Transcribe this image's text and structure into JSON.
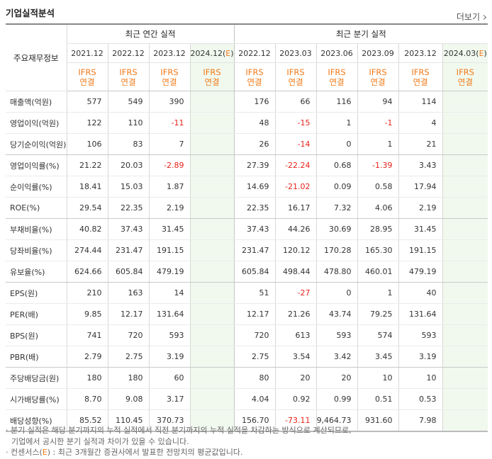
{
  "header": {
    "title": "기업실적분석",
    "more_label": "더보기"
  },
  "table": {
    "corner_label": "주요재무정보",
    "group_annual": "최근 연간 실적",
    "group_quarter": "최근 분기 실적",
    "periods": [
      "2021.12",
      "2022.12",
      "2023.12",
      "2024.12(E)",
      "2022.12",
      "2023.03",
      "2023.06",
      "2023.09",
      "2023.12",
      "2024.03(E)"
    ],
    "ifrs_top": "IFRS",
    "ifrs_bottom": "연결",
    "rows": [
      {
        "label": "매출액(억원)",
        "values": [
          "577",
          "549",
          "390",
          "",
          "176",
          "66",
          "116",
          "94",
          "114",
          ""
        ]
      },
      {
        "label": "영업이익(억원)",
        "values": [
          "122",
          "110",
          "-11",
          "",
          "48",
          "-15",
          "1",
          "-1",
          "4",
          ""
        ]
      },
      {
        "label": "당기순이익(억원)",
        "values": [
          "106",
          "83",
          "7",
          "",
          "26",
          "-14",
          "0",
          "1",
          "21",
          ""
        ]
      },
      {
        "label": "영업이익률(%)",
        "values": [
          "21.22",
          "20.03",
          "-2.89",
          "",
          "27.39",
          "-22.24",
          "0.68",
          "-1.39",
          "3.43",
          ""
        ]
      },
      {
        "label": "순이익률(%)",
        "values": [
          "18.41",
          "15.03",
          "1.87",
          "",
          "14.69",
          "-21.02",
          "0.09",
          "0.58",
          "17.94",
          ""
        ]
      },
      {
        "label": "ROE(%)",
        "values": [
          "29.54",
          "22.35",
          "2.19",
          "",
          "22.35",
          "16.17",
          "7.32",
          "4.06",
          "2.19",
          ""
        ]
      },
      {
        "label": "부채비율(%)",
        "values": [
          "40.82",
          "37.43",
          "31.45",
          "",
          "37.43",
          "44.26",
          "30.69",
          "28.95",
          "31.45",
          ""
        ]
      },
      {
        "label": "당좌비율(%)",
        "values": [
          "274.44",
          "231.47",
          "191.15",
          "",
          "231.47",
          "120.12",
          "170.28",
          "165.30",
          "191.15",
          ""
        ]
      },
      {
        "label": "유보율(%)",
        "values": [
          "624.66",
          "605.84",
          "479.19",
          "",
          "605.84",
          "498.44",
          "478.80",
          "460.01",
          "479.19",
          ""
        ]
      },
      {
        "label": "EPS(원)",
        "values": [
          "210",
          "163",
          "14",
          "",
          "51",
          "-27",
          "0",
          "1",
          "40",
          ""
        ]
      },
      {
        "label": "PER(배)",
        "values": [
          "9.85",
          "12.17",
          "131.64",
          "",
          "12.17",
          "21.26",
          "43.74",
          "79.25",
          "131.64",
          ""
        ]
      },
      {
        "label": "BPS(원)",
        "values": [
          "741",
          "720",
          "593",
          "",
          "720",
          "613",
          "593",
          "574",
          "593",
          ""
        ]
      },
      {
        "label": "PBR(배)",
        "values": [
          "2.79",
          "2.75",
          "3.19",
          "",
          "2.75",
          "3.54",
          "3.42",
          "3.45",
          "3.19",
          ""
        ]
      },
      {
        "label": "주당배당금(원)",
        "values": [
          "180",
          "180",
          "60",
          "",
          "80",
          "20",
          "20",
          "10",
          "10",
          ""
        ]
      },
      {
        "label": "시가배당률(%)",
        "values": [
          "8.70",
          "9.08",
          "3.17",
          "",
          "4.04",
          "0.92",
          "0.99",
          "0.51",
          "0.53",
          ""
        ]
      },
      {
        "label": "배당성향(%)",
        "values": [
          "85.52",
          "110.45",
          "370.73",
          "",
          "156.70",
          "-73.11",
          "9,464.73",
          "931.60",
          "7.98",
          ""
        ]
      }
    ]
  },
  "notes": {
    "line1": "· 분기 실적은 해당 분기까지의 누적 실적에서 직전 분기까지의 누적 실적을 차감하는 방식으로 계산되므로,",
    "line2": "기업에서 공시한 분기 실적과 차이가 있을 수 있습니다.",
    "line3_prefix": "· 컨센서스(",
    "line3_e": "E",
    "line3_suffix": ") : 최근 3개월간 증권사에서 발표한 전망치의 평균값입니다."
  },
  "colors": {
    "accent": "#f07a19",
    "negative": "#e8231b",
    "estimate_bg": "#f1f9ee"
  }
}
